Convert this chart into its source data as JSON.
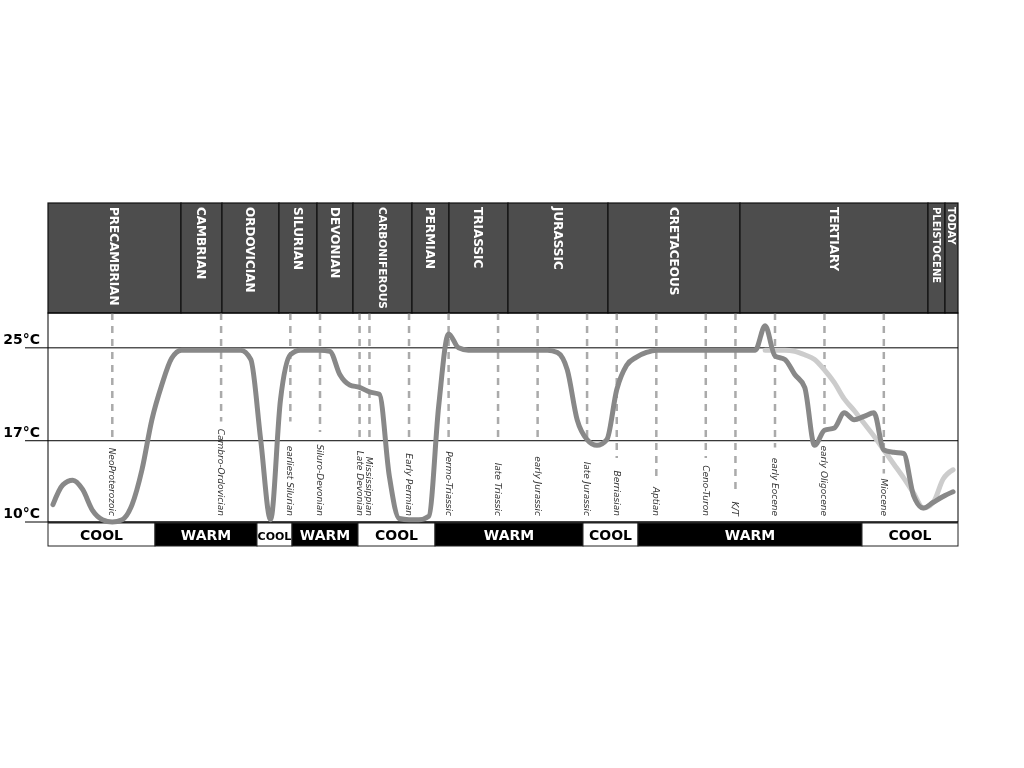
{
  "chart_data": {
    "type": "line",
    "categories": [
      null,
      null,
      null,
      null,
      null,
      null,
      "NeoProterozoic",
      null,
      null,
      null,
      null,
      null,
      null,
      null,
      null,
      null,
      null,
      "Cambro-Ordovician",
      null,
      null,
      null,
      null,
      null,
      null,
      "earliest Silurian",
      null,
      null,
      "Siluro-Devonian",
      null,
      null,
      null,
      "Late Devonian",
      "Mississippian",
      null,
      null,
      null,
      "Early Permian",
      null,
      null,
      null,
      "Permo-Triassic",
      null,
      null,
      null,
      null,
      "late Triassic",
      null,
      null,
      null,
      "early Jurassic",
      null,
      null,
      null,
      null,
      "late Jurassic",
      null,
      null,
      "Berriasian",
      null,
      null,
      null,
      "Aptian",
      null,
      null,
      null,
      null,
      "Ceno-Turon",
      null,
      null,
      "K/T",
      null,
      null,
      null,
      "early Eocene",
      null,
      null,
      null,
      null,
      "early Oligocene",
      null,
      null,
      null,
      null,
      null,
      "Miocene",
      null,
      null,
      null,
      null,
      null,
      null,
      null
    ],
    "series": [
      {
        "color": "#888888",
        "values": [
          11.5,
          13.2,
          13.6,
          12.8,
          11,
          10.2,
          10,
          10.2,
          11.5,
          14.5,
          18.8,
          21.8,
          24.1,
          24.8,
          24.8,
          24.8,
          24.8,
          24.8,
          24.8,
          24.8,
          24,
          17.1,
          10.2,
          20.5,
          24.4,
          24.8,
          24.8,
          24.8,
          24.7,
          22.7,
          21.8,
          21.6,
          21.2,
          21,
          14,
          10.3,
          10.2,
          10.2,
          10.5,
          20,
          26.2,
          25,
          24.8,
          24.8,
          24.8,
          24.8,
          24.8,
          24.8,
          24.8,
          24.8,
          24.8,
          24.6,
          23.1,
          18.8,
          17.1,
          16.6,
          17.1,
          21.4,
          23.5,
          24.2,
          24.6,
          24.8,
          24.8,
          24.8,
          24.8,
          24.8,
          24.8,
          24.8,
          24.8,
          24.8,
          24.8,
          24.8,
          26.9,
          24.3,
          24,
          22.7,
          21.6,
          16.6,
          17.9,
          18.1,
          19.4,
          18.8,
          19.1,
          19.4,
          16.2,
          16,
          15.9,
          12.3,
          11.2,
          11.7,
          12.2,
          12.6
        ]
      },
      {
        "color": "#cccccc",
        "values": [
          null,
          null,
          null,
          null,
          null,
          null,
          null,
          null,
          null,
          null,
          null,
          null,
          null,
          null,
          null,
          null,
          null,
          null,
          null,
          null,
          null,
          null,
          null,
          null,
          null,
          null,
          null,
          null,
          null,
          null,
          null,
          null,
          null,
          null,
          null,
          null,
          null,
          null,
          null,
          null,
          null,
          null,
          null,
          null,
          null,
          null,
          null,
          null,
          null,
          null,
          null,
          null,
          null,
          null,
          null,
          null,
          null,
          null,
          null,
          null,
          null,
          null,
          null,
          null,
          null,
          null,
          null,
          null,
          null,
          null,
          null,
          null,
          24.8,
          24.8,
          24.8,
          24.7,
          24.4,
          24,
          23.1,
          22,
          20.6,
          19.6,
          18.5,
          17.4,
          16.2,
          15,
          13.8,
          12.5,
          11.2,
          11.7,
          13.7,
          14.5
        ]
      }
    ],
    "ylim": [
      10,
      28
    ],
    "yticks": [
      {
        "value": 10,
        "label": "10°C"
      },
      {
        "value": 17,
        "label": "17°C"
      },
      {
        "value": 25,
        "label": "25°C"
      }
    ],
    "grid": true,
    "annotations": [
      "PRECAMBRIAN",
      "CAMBRIAN",
      "ORDOVICIAN",
      "SILURIAN",
      "DEVONIAN",
      "CARBONIFEROUS",
      "PERMIAN",
      "TRIASSIC",
      "JURASSIC",
      "CRETACEOUS",
      "TERTIARY",
      "PLEISTOCENE",
      "TODAY",
      "COOL",
      "WARM",
      "COOL",
      "WARM",
      "COOL",
      "WARM",
      "COOL",
      "WARM",
      "COOL"
    ]
  }
}
